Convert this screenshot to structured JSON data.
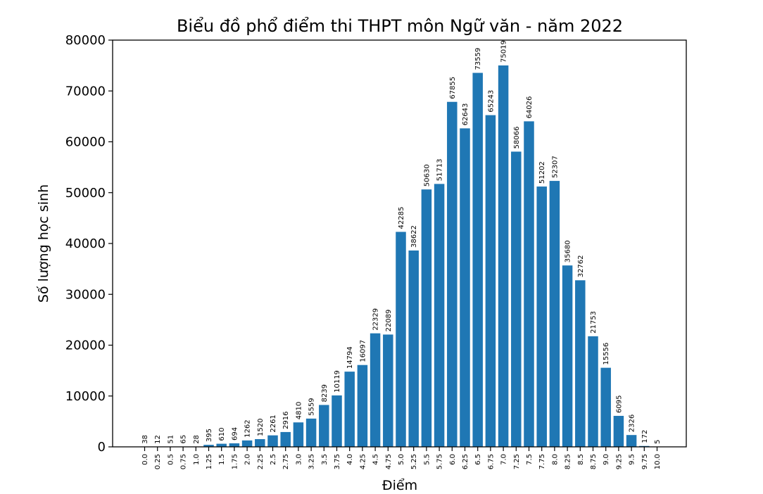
{
  "chart_data": {
    "type": "bar",
    "title": "Biểu đồ phổ điểm thi THPT môn Ngữ văn - năm 2022",
    "xlabel": "Điểm",
    "ylabel": "Số lượng học sinh",
    "ylim": [
      0,
      80000
    ],
    "yticks": [
      "0",
      "10000",
      "20000",
      "30000",
      "40000",
      "50000",
      "60000",
      "70000",
      "80000"
    ],
    "color": "#1f77b4",
    "categories": [
      "0.0",
      "0.25",
      "0.5",
      "0.75",
      "1.0",
      "1.25",
      "1.5",
      "1.75",
      "2.0",
      "2.25",
      "2.5",
      "2.75",
      "3.0",
      "3.25",
      "3.5",
      "3.75",
      "4.0",
      "4.25",
      "4.5",
      "4.75",
      "5.0",
      "5.25",
      "5.5",
      "5.75",
      "6.0",
      "6.25",
      "6.5",
      "6.75",
      "7.0",
      "7.25",
      "7.5",
      "7.75",
      "8.0",
      "8.25",
      "8.5",
      "8.75",
      "9.0",
      "9.25",
      "9.5",
      "9.75",
      "10.0"
    ],
    "values": [
      38,
      12,
      51,
      65,
      28,
      395,
      610,
      694,
      1262,
      1520,
      2261,
      2916,
      4810,
      5559,
      8239,
      10119,
      14794,
      16097,
      22329,
      22089,
      42285,
      38622,
      50630,
      51713,
      67855,
      62643,
      73559,
      65243,
      75019,
      58066,
      64026,
      51202,
      52307,
      35680,
      32762,
      21753,
      15556,
      6095,
      2326,
      172,
      5
    ],
    "data_labels": [
      "38",
      "12",
      "51",
      "65",
      "28",
      "395",
      "610",
      "694",
      "1262",
      "1520",
      "2261",
      "2916",
      "4810",
      "5559",
      "8239",
      "10119",
      "14794",
      "16097",
      "22329",
      "22089",
      "42285",
      "38622",
      "50630",
      "51713",
      "67855",
      "62643",
      "73559",
      "65243",
      "75019",
      "58066",
      "64026",
      "51202",
      "52307",
      "35680",
      "32762",
      "21753",
      "15556",
      "6095",
      "2326",
      "172",
      "5"
    ],
    "grid": false,
    "legend": "none"
  }
}
